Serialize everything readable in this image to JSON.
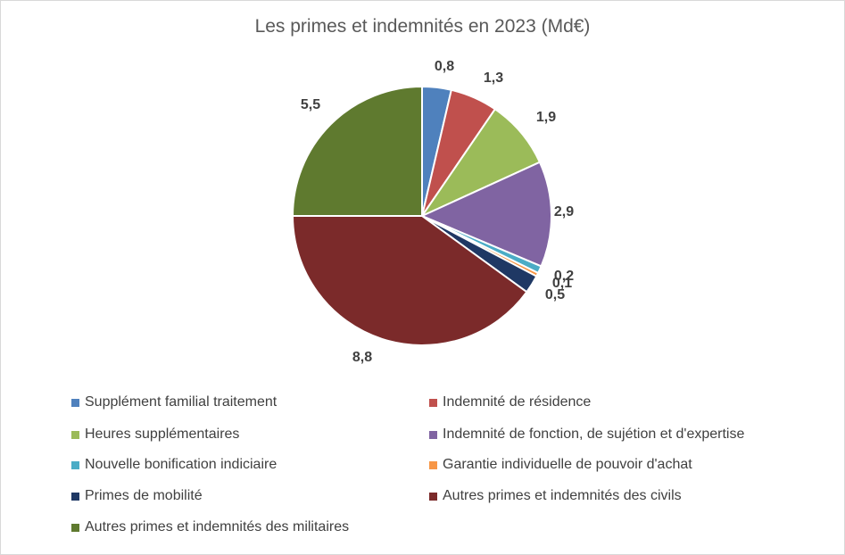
{
  "chart_data": {
    "type": "pie",
    "title": "Les primes et indemnités en 2023 (Md€)",
    "slices": [
      {
        "name": "Supplément familial traitement",
        "value": 0.8,
        "label": "0,8",
        "color": "#4f81bd"
      },
      {
        "name": "Indemnité de résidence",
        "value": 1.3,
        "label": "1,3",
        "color": "#c0504d"
      },
      {
        "name": "Heures supplémentaires",
        "value": 1.9,
        "label": "1,9",
        "color": "#9bbb59"
      },
      {
        "name": "Indemnité de fonction, de sujétion et d'expertise",
        "value": 2.9,
        "label": "2,9",
        "color": "#8064a2"
      },
      {
        "name": "Nouvelle bonification indiciaire",
        "value": 0.2,
        "label": "0,2",
        "color": "#4bacc6"
      },
      {
        "name": "Garantie individuelle de pouvoir d'achat",
        "value": 0.1,
        "label": "0,1",
        "color": "#f79646"
      },
      {
        "name": "Primes de mobilité",
        "value": 0.5,
        "label": "0,5",
        "color": "#1f3864"
      },
      {
        "name": "Autres primes et indemnités des civils",
        "value": 8.8,
        "label": "8,8",
        "color": "#7b2a2a"
      },
      {
        "name": "Autres primes et indemnités des militaires",
        "value": 5.5,
        "label": "5,5",
        "color": "#5f7a2f"
      }
    ],
    "legend_position": "bottom"
  }
}
